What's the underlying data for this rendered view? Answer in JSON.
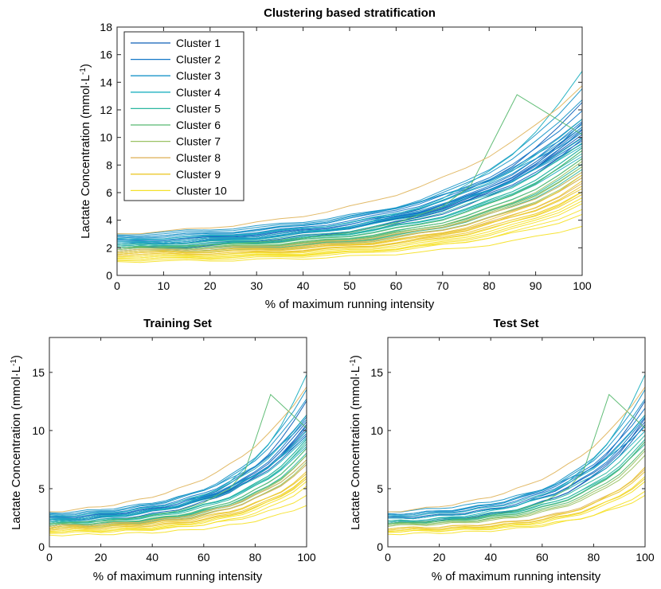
{
  "chart_data": [
    {
      "type": "line",
      "id": "top",
      "title": "Clustering based stratification",
      "xlabel": "% of maximum running intensity",
      "ylabel_main": "Lactate Concentration (mmol·L",
      "ylabel_sup": "-1",
      "ylabel_close": ")",
      "xlim": [
        0,
        100
      ],
      "ylim": [
        0,
        18
      ],
      "xticks": [
        0,
        10,
        20,
        30,
        40,
        50,
        60,
        70,
        80,
        90,
        100
      ],
      "yticks": [
        0,
        2,
        4,
        6,
        8,
        10,
        12,
        14,
        16,
        18
      ],
      "legend_position": "top-left",
      "series": [
        {
          "name": "Cluster 1",
          "color": "#0f5fb8",
          "curves": [
            [
              2.4,
              10.8,
              3.6
            ],
            [
              2.2,
              10.2,
              3.4
            ],
            [
              2.0,
              11.0,
              3.8
            ],
            [
              2.3,
              9.6,
              3.3
            ],
            [
              2.1,
              10.5,
              3.7
            ],
            [
              1.9,
              9.8,
              3.5
            ],
            [
              2.5,
              12.6,
              4.0
            ],
            [
              2.2,
              10.0,
              3.2
            ]
          ],
          "series_extra": []
        },
        {
          "name": "Cluster 2",
          "color": "#1478c8",
          "curves": [
            [
              2.6,
              11.4,
              3.4
            ],
            [
              2.3,
              10.4,
              3.5
            ],
            [
              2.8,
              12.0,
              3.6
            ],
            [
              2.5,
              9.8,
              3.2
            ],
            [
              2.4,
              11.2,
              3.7
            ],
            [
              2.2,
              10.6,
              3.4
            ]
          ],
          "series_extra": []
        },
        {
          "name": "Cluster 3",
          "color": "#1a96c8",
          "curves": [
            [
              2.7,
              12.8,
              3.6
            ],
            [
              2.9,
              11.0,
              3.2
            ],
            [
              3.0,
              10.4,
              3.0
            ],
            [
              2.6,
              9.6,
              3.1
            ],
            [
              2.8,
              13.6,
              3.8
            ],
            [
              2.5,
              10.8,
              3.3
            ]
          ],
          "series_extra": []
        },
        {
          "name": "Cluster 4",
          "color": "#1fb0c0",
          "curves": [
            [
              2.2,
              14.8,
              4.2
            ],
            [
              2.0,
              9.2,
              3.6
            ],
            [
              2.4,
              10.0,
              3.4
            ],
            [
              2.1,
              8.6,
              3.5
            ],
            [
              2.6,
              11.4,
              3.6
            ],
            [
              2.3,
              9.4,
              3.3
            ]
          ],
          "series_extra": []
        },
        {
          "name": "Cluster 5",
          "color": "#2cb7a0",
          "curves": [
            [
              2.0,
              9.0,
              3.8
            ],
            [
              1.8,
              8.4,
              3.7
            ],
            [
              2.2,
              9.6,
              3.6
            ],
            [
              1.9,
              8.0,
              3.9
            ],
            [
              2.1,
              8.8,
              3.5
            ],
            [
              1.7,
              7.6,
              3.8
            ],
            [
              2.0,
              9.2,
              3.6
            ]
          ],
          "series_extra": []
        },
        {
          "name": "Cluster 6",
          "color": "#58b970",
          "curves": [
            [
              1.9,
              8.4,
              3.8
            ],
            [
              1.8,
              7.8,
              3.7
            ],
            [
              2.0,
              9.0,
              3.9
            ],
            [
              1.7,
              7.4,
              3.6
            ]
          ],
          "series_extra": [
            {
              "x": [
                0,
                10,
                20,
                30,
                40,
                50,
                60,
                70,
                76,
                86,
                100
              ],
              "y": [
                2.0,
                2.1,
                2.2,
                2.4,
                2.7,
                3.1,
                3.8,
                5.0,
                6.5,
                13.1,
                10.2
              ]
            }
          ]
        },
        {
          "name": "Cluster 7",
          "color": "#9ac264",
          "curves": [
            [
              1.8,
              7.8,
              3.9
            ],
            [
              1.6,
              7.2,
              3.8
            ],
            [
              1.9,
              8.2,
              4.0
            ],
            [
              1.7,
              7.0,
              3.7
            ]
          ],
          "series_extra": []
        },
        {
          "name": "Cluster 8",
          "color": "#e0b660",
          "curves": [
            [
              3.0,
              13.8,
              3.0
            ],
            [
              1.7,
              7.0,
              3.8
            ],
            [
              1.6,
              6.6,
              3.9
            ],
            [
              1.8,
              7.4,
              3.7
            ]
          ],
          "series_extra": []
        },
        {
          "name": "Cluster 9",
          "color": "#ecc82e",
          "curves": [
            [
              1.6,
              6.4,
              4.0
            ],
            [
              1.5,
              6.0,
              3.9
            ],
            [
              1.4,
              6.8,
              4.1
            ],
            [
              1.7,
              6.2,
              3.8
            ],
            [
              1.5,
              5.8,
              4.0
            ],
            [
              1.6,
              7.2,
              4.2
            ]
          ],
          "series_extra": []
        },
        {
          "name": "Cluster 10",
          "color": "#f5e12a",
          "curves": [
            [
              1.3,
              5.6,
              4.0
            ],
            [
              1.2,
              5.2,
              4.1
            ],
            [
              1.1,
              4.8,
              3.9
            ],
            [
              1.0,
              3.6,
              3.6
            ],
            [
              1.4,
              6.0,
              4.2
            ],
            [
              1.2,
              5.4,
              4.0
            ],
            [
              1.3,
              4.4,
              3.8
            ]
          ],
          "series_extra": []
        }
      ]
    },
    {
      "type": "line",
      "id": "training",
      "title": "Training Set",
      "xlabel": "% of maximum running intensity",
      "ylabel_main": "Lactate Concentration (mmol·L",
      "ylabel_sup": "-1",
      "ylabel_close": ")",
      "xlim": [
        0,
        100
      ],
      "ylim": [
        0,
        18
      ],
      "xticks": [
        0,
        20,
        40,
        60,
        80,
        100
      ],
      "yticks": [
        0,
        5,
        10,
        15
      ],
      "series_ref": "top",
      "subset": "training"
    },
    {
      "type": "line",
      "id": "test",
      "title": "Test Set",
      "xlabel": "% of maximum running intensity",
      "ylabel_main": "Lactate Concentration (mmol·L",
      "ylabel_sup": "-1",
      "ylabel_close": ")",
      "xlim": [
        0,
        100
      ],
      "ylim": [
        0,
        18
      ],
      "xticks": [
        0,
        20,
        40,
        60,
        80,
        100
      ],
      "yticks": [
        0,
        5,
        10,
        15
      ],
      "series_ref": "top",
      "subset": "test"
    }
  ]
}
